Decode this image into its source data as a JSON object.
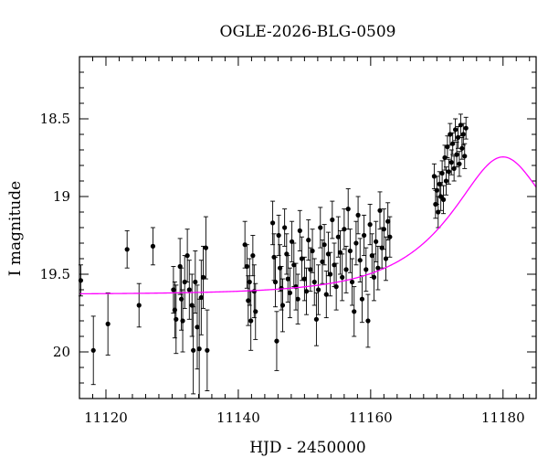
{
  "chart_data": {
    "type": "scatter",
    "title": "OGLE-2026-BLG-0509",
    "xlabel": "HJD - 2450000",
    "ylabel": "I magnitude",
    "xlim": [
      11116,
      11185
    ],
    "ylim": [
      20.3,
      18.1
    ],
    "y_inverted": true,
    "xticks": [
      11120,
      11140,
      11160,
      11180
    ],
    "xtick_labels": [
      "11120",
      "11140",
      "11160",
      "11180"
    ],
    "yticks": [
      18.5,
      19,
      19.5,
      20
    ],
    "ytick_labels": [
      "18.5",
      "19",
      "19.5",
      "20"
    ],
    "grid": false,
    "legend": "none",
    "colors": {
      "data": "#000000",
      "model": "#ff00ff"
    },
    "series": [
      {
        "type": "points-with-errorbars",
        "points": [
          [
            11116.2,
            19.54,
            0.1
          ],
          [
            11118.1,
            19.99,
            0.22
          ],
          [
            11120.3,
            19.82,
            0.2
          ],
          [
            11123.2,
            19.34,
            0.12
          ],
          [
            11125.0,
            19.7,
            0.14
          ],
          [
            11127.1,
            19.32,
            0.12
          ],
          [
            11130.2,
            19.6,
            0.15
          ],
          [
            11130.4,
            19.73,
            0.18
          ],
          [
            11130.6,
            19.79,
            0.22
          ],
          [
            11131.2,
            19.45,
            0.18
          ],
          [
            11131.4,
            19.66,
            0.2
          ],
          [
            11131.6,
            19.8,
            0.2
          ],
          [
            11131.9,
            19.55,
            0.17
          ],
          [
            11132.3,
            19.38,
            0.17
          ],
          [
            11132.6,
            19.6,
            0.19
          ],
          [
            11133.0,
            19.7,
            0.2
          ],
          [
            11133.2,
            19.99,
            0.28
          ],
          [
            11133.5,
            19.55,
            0.2
          ],
          [
            11133.8,
            19.84,
            0.27
          ],
          [
            11134.1,
            19.98,
            0.32
          ],
          [
            11134.4,
            19.65,
            0.24
          ],
          [
            11134.7,
            19.52,
            0.2
          ],
          [
            11135.1,
            19.33,
            0.2
          ],
          [
            11135.3,
            19.99,
            0.26
          ],
          [
            11141.0,
            19.31,
            0.15
          ],
          [
            11141.3,
            19.45,
            0.14
          ],
          [
            11141.5,
            19.67,
            0.16
          ],
          [
            11141.7,
            19.55,
            0.15
          ],
          [
            11141.9,
            19.8,
            0.19
          ],
          [
            11142.2,
            19.38,
            0.13
          ],
          [
            11142.4,
            19.61,
            0.17
          ],
          [
            11142.6,
            19.74,
            0.18
          ],
          [
            11145.2,
            19.17,
            0.14
          ],
          [
            11145.4,
            19.39,
            0.15
          ],
          [
            11145.6,
            19.55,
            0.16
          ],
          [
            11145.8,
            19.93,
            0.19
          ],
          [
            11146.1,
            19.25,
            0.13
          ],
          [
            11146.3,
            19.46,
            0.15
          ],
          [
            11146.5,
            19.59,
            0.14
          ],
          [
            11146.7,
            19.7,
            0.17
          ],
          [
            11147.0,
            19.2,
            0.12
          ],
          [
            11147.3,
            19.37,
            0.13
          ],
          [
            11147.5,
            19.53,
            0.15
          ],
          [
            11147.8,
            19.62,
            0.16
          ],
          [
            11148.1,
            19.29,
            0.13
          ],
          [
            11148.4,
            19.44,
            0.14
          ],
          [
            11148.7,
            19.58,
            0.15
          ],
          [
            11149.0,
            19.66,
            0.16
          ],
          [
            11149.3,
            19.22,
            0.13
          ],
          [
            11149.6,
            19.4,
            0.14
          ],
          [
            11150.0,
            19.53,
            0.14
          ],
          [
            11150.3,
            19.61,
            0.15
          ],
          [
            11150.6,
            19.28,
            0.13
          ],
          [
            11150.9,
            19.47,
            0.14
          ],
          [
            11151.2,
            19.35,
            0.14
          ],
          [
            11151.5,
            19.55,
            0.15
          ],
          [
            11151.8,
            19.79,
            0.17
          ],
          [
            11152.1,
            19.6,
            0.16
          ],
          [
            11152.4,
            19.2,
            0.13
          ],
          [
            11152.7,
            19.42,
            0.14
          ],
          [
            11153.0,
            19.31,
            0.13
          ],
          [
            11153.3,
            19.63,
            0.15
          ],
          [
            11153.6,
            19.37,
            0.14
          ],
          [
            11153.9,
            19.5,
            0.14
          ],
          [
            11154.2,
            19.15,
            0.12
          ],
          [
            11154.5,
            19.44,
            0.14
          ],
          [
            11154.8,
            19.58,
            0.15
          ],
          [
            11155.1,
            19.26,
            0.13
          ],
          [
            11155.4,
            19.36,
            0.14
          ],
          [
            11155.7,
            19.52,
            0.15
          ],
          [
            11156.0,
            19.21,
            0.13
          ],
          [
            11156.3,
            19.47,
            0.15
          ],
          [
            11156.6,
            19.08,
            0.13
          ],
          [
            11156.9,
            19.35,
            0.14
          ],
          [
            11157.2,
            19.55,
            0.15
          ],
          [
            11157.5,
            19.74,
            0.16
          ],
          [
            11157.8,
            19.3,
            0.14
          ],
          [
            11158.1,
            19.12,
            0.12
          ],
          [
            11158.4,
            19.41,
            0.14
          ],
          [
            11158.7,
            19.66,
            0.15
          ],
          [
            11159.0,
            19.25,
            0.13
          ],
          [
            11159.3,
            19.47,
            0.14
          ],
          [
            11159.6,
            19.8,
            0.17
          ],
          [
            11159.9,
            19.18,
            0.13
          ],
          [
            11160.2,
            19.38,
            0.14
          ],
          [
            11160.5,
            19.52,
            0.15
          ],
          [
            11160.8,
            19.29,
            0.13
          ],
          [
            11161.1,
            19.46,
            0.14
          ],
          [
            11161.4,
            19.09,
            0.12
          ],
          [
            11161.7,
            19.33,
            0.13
          ],
          [
            11162.0,
            19.21,
            0.13
          ],
          [
            11162.3,
            19.4,
            0.14
          ],
          [
            11162.6,
            19.16,
            0.12
          ],
          [
            11162.9,
            19.26,
            0.13
          ],
          [
            11169.6,
            18.87,
            0.08
          ],
          [
            11169.8,
            19.05,
            0.09
          ],
          [
            11170.0,
            18.96,
            0.09
          ],
          [
            11170.2,
            19.1,
            0.1
          ],
          [
            11170.4,
            18.92,
            0.08
          ],
          [
            11170.6,
            19.0,
            0.09
          ],
          [
            11170.8,
            18.85,
            0.08
          ],
          [
            11171.0,
            19.02,
            0.09
          ],
          [
            11171.2,
            18.75,
            0.08
          ],
          [
            11171.4,
            18.9,
            0.09
          ],
          [
            11171.6,
            18.68,
            0.07
          ],
          [
            11171.8,
            18.84,
            0.08
          ],
          [
            11172.0,
            18.6,
            0.07
          ],
          [
            11172.2,
            18.78,
            0.08
          ],
          [
            11172.4,
            18.66,
            0.07
          ],
          [
            11172.6,
            18.82,
            0.08
          ],
          [
            11172.8,
            18.57,
            0.07
          ],
          [
            11173.0,
            18.73,
            0.08
          ],
          [
            11173.2,
            18.62,
            0.07
          ],
          [
            11173.4,
            18.79,
            0.08
          ],
          [
            11173.6,
            18.54,
            0.07
          ],
          [
            11173.8,
            18.69,
            0.07
          ],
          [
            11174.0,
            18.6,
            0.07
          ],
          [
            11174.2,
            18.74,
            0.08
          ],
          [
            11174.4,
            18.56,
            0.07
          ]
        ]
      },
      {
        "type": "model-curve",
        "u0": 0.48,
        "t0": 11180.0,
        "tE": 14.0,
        "mag_base": 19.63
      }
    ]
  }
}
